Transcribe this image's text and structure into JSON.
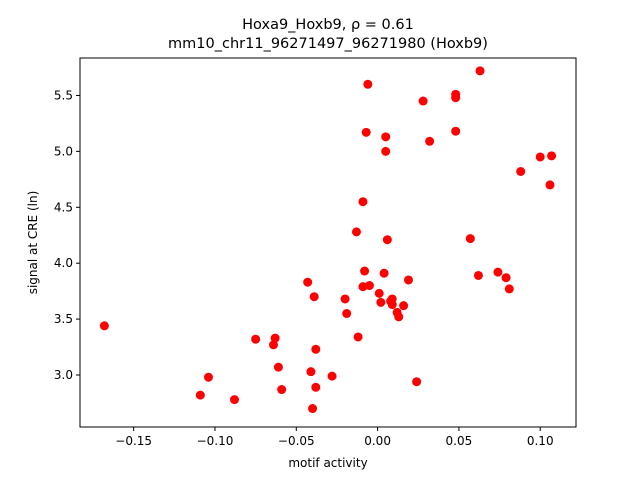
{
  "chart_data": {
    "type": "scatter",
    "title_line1": "Hoxa9_Hoxb9, ρ = 0.61",
    "title_line2": "mm10_chr11_96271497_96271980 (Hoxb9)",
    "xlabel": "motif activity",
    "ylabel": "signal at CRE (ln)",
    "xlim": [
      -0.183,
      0.122
    ],
    "ylim": [
      2.535,
      5.835
    ],
    "x_ticks": [
      -0.15,
      -0.1,
      -0.05,
      0.0,
      0.05,
      0.1
    ],
    "x_tick_labels": [
      "−0.15",
      "−0.10",
      "−0.05",
      "0.00",
      "0.05",
      "0.10"
    ],
    "y_ticks": [
      3.0,
      3.5,
      4.0,
      4.5,
      5.0,
      5.5
    ],
    "y_tick_labels": [
      "3.0",
      "3.5",
      "4.0",
      "4.5",
      "5.0",
      "5.5"
    ],
    "grid": false,
    "point_color": "#ff0000",
    "points": [
      {
        "x": -0.168,
        "y": 3.44
      },
      {
        "x": -0.109,
        "y": 2.82
      },
      {
        "x": -0.104,
        "y": 2.98
      },
      {
        "x": -0.088,
        "y": 2.78
      },
      {
        "x": -0.075,
        "y": 3.32
      },
      {
        "x": -0.064,
        "y": 3.27
      },
      {
        "x": -0.063,
        "y": 3.33
      },
      {
        "x": -0.061,
        "y": 3.07
      },
      {
        "x": -0.059,
        "y": 2.87
      },
      {
        "x": -0.043,
        "y": 3.83
      },
      {
        "x": -0.041,
        "y": 3.03
      },
      {
        "x": -0.04,
        "y": 2.7
      },
      {
        "x": -0.039,
        "y": 3.7
      },
      {
        "x": -0.038,
        "y": 3.23
      },
      {
        "x": -0.038,
        "y": 2.89
      },
      {
        "x": -0.028,
        "y": 2.99
      },
      {
        "x": -0.02,
        "y": 3.68
      },
      {
        "x": -0.019,
        "y": 3.55
      },
      {
        "x": -0.013,
        "y": 4.28
      },
      {
        "x": -0.012,
        "y": 3.34
      },
      {
        "x": -0.009,
        "y": 4.55
      },
      {
        "x": -0.009,
        "y": 3.79
      },
      {
        "x": -0.008,
        "y": 3.93
      },
      {
        "x": -0.007,
        "y": 5.17
      },
      {
        "x": -0.006,
        "y": 5.6
      },
      {
        "x": -0.005,
        "y": 3.8
      },
      {
        "x": 0.001,
        "y": 3.73
      },
      {
        "x": 0.002,
        "y": 3.65
      },
      {
        "x": 0.004,
        "y": 3.91
      },
      {
        "x": 0.005,
        "y": 5.13
      },
      {
        "x": 0.005,
        "y": 5.0
      },
      {
        "x": 0.006,
        "y": 4.21
      },
      {
        "x": 0.008,
        "y": 3.66
      },
      {
        "x": 0.009,
        "y": 3.63
      },
      {
        "x": 0.009,
        "y": 3.68
      },
      {
        "x": 0.012,
        "y": 3.56
      },
      {
        "x": 0.013,
        "y": 3.52
      },
      {
        "x": 0.016,
        "y": 3.62
      },
      {
        "x": 0.019,
        "y": 3.85
      },
      {
        "x": 0.024,
        "y": 2.94
      },
      {
        "x": 0.028,
        "y": 5.45
      },
      {
        "x": 0.032,
        "y": 5.09
      },
      {
        "x": 0.048,
        "y": 5.51
      },
      {
        "x": 0.048,
        "y": 5.48
      },
      {
        "x": 0.048,
        "y": 5.18
      },
      {
        "x": 0.057,
        "y": 4.22
      },
      {
        "x": 0.062,
        "y": 3.89
      },
      {
        "x": 0.063,
        "y": 5.72
      },
      {
        "x": 0.074,
        "y": 3.92
      },
      {
        "x": 0.079,
        "y": 3.87
      },
      {
        "x": 0.081,
        "y": 3.77
      },
      {
        "x": 0.088,
        "y": 4.82
      },
      {
        "x": 0.1,
        "y": 4.95
      },
      {
        "x": 0.106,
        "y": 4.7
      },
      {
        "x": 0.107,
        "y": 4.96
      }
    ]
  }
}
